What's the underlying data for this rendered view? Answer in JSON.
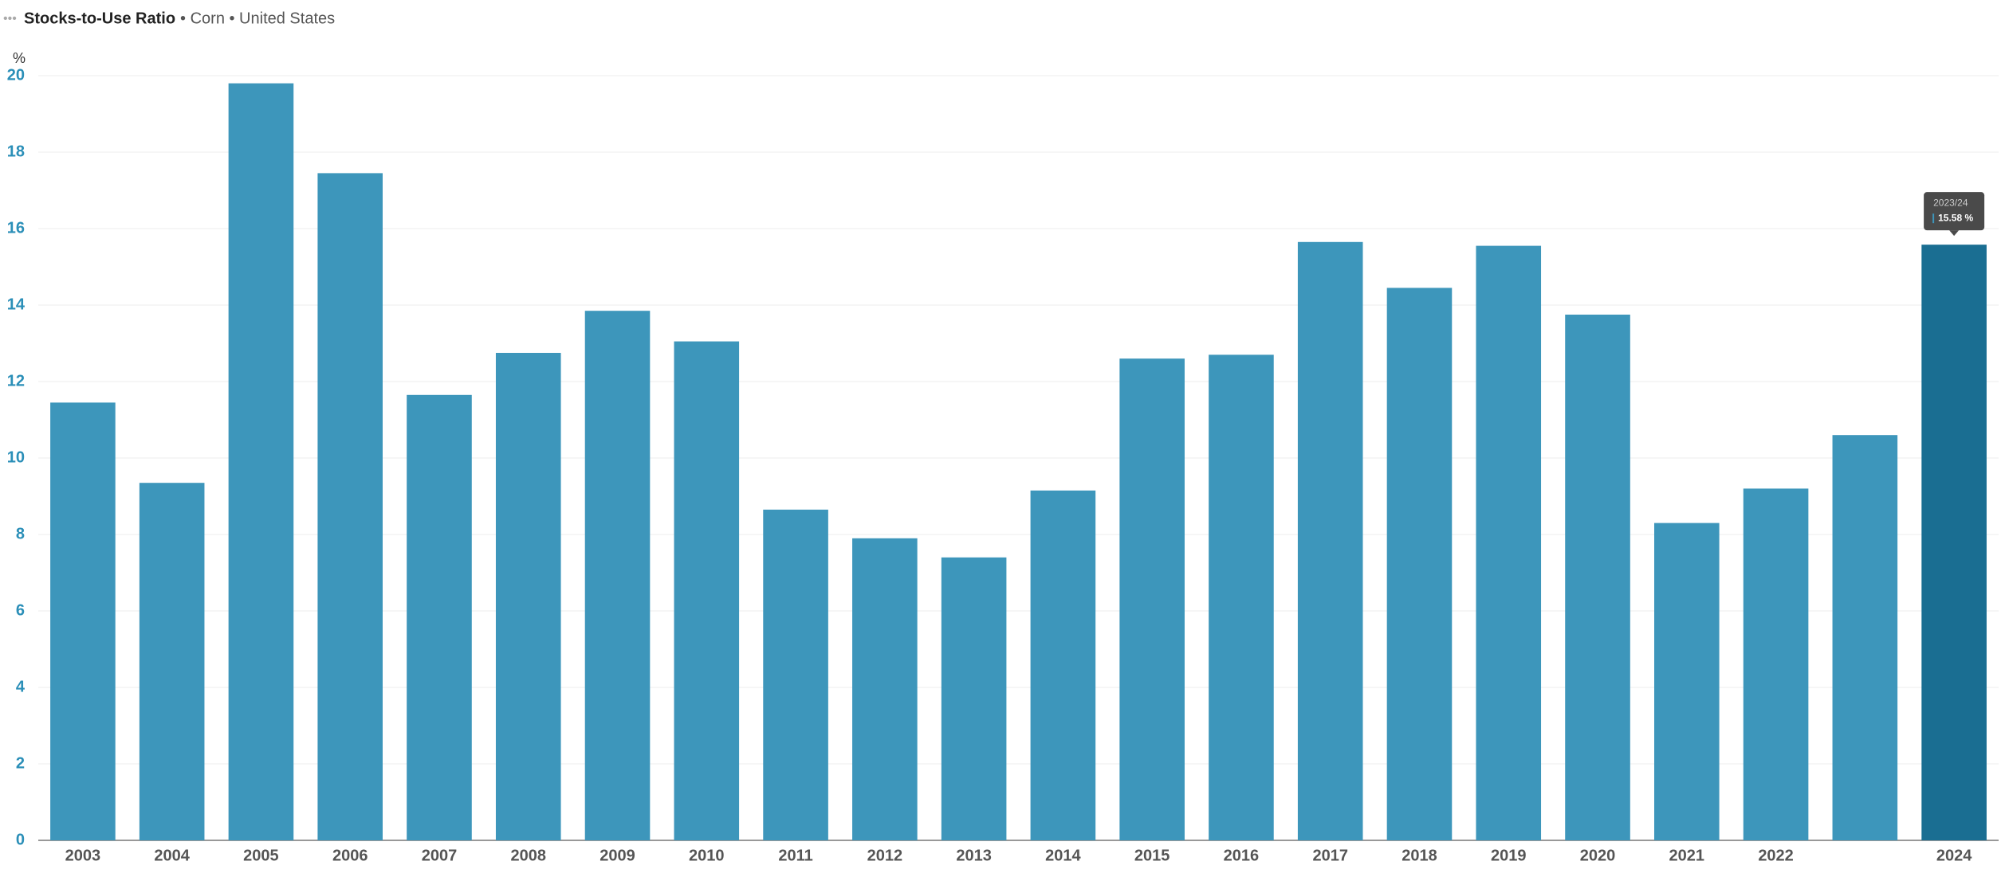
{
  "chart_data": {
    "type": "bar",
    "title": "Stocks-to-Use Ratio",
    "subtitle": "• Corn • United States",
    "y_unit": "%",
    "categories": [
      "2003",
      "2004",
      "2005",
      "2006",
      "2007",
      "2008",
      "2009",
      "2010",
      "2011",
      "2012",
      "2013",
      "2014",
      "2015",
      "2016",
      "2017",
      "2018",
      "2019",
      "2020",
      "2021",
      "2022",
      null,
      "2024"
    ],
    "values": [
      11.45,
      9.35,
      19.8,
      17.45,
      11.65,
      12.75,
      13.85,
      13.05,
      8.65,
      7.9,
      7.4,
      9.15,
      12.6,
      12.7,
      15.65,
      14.45,
      15.55,
      13.75,
      8.3,
      9.2,
      10.6,
      15.58
    ],
    "colors": [
      "#3d96bb",
      "#3d96bb",
      "#3d96bb",
      "#3d96bb",
      "#3d96bb",
      "#3d96bb",
      "#3d96bb",
      "#3d96bb",
      "#3d96bb",
      "#3d96bb",
      "#3d96bb",
      "#3d96bb",
      "#3d96bb",
      "#3d96bb",
      "#3d96bb",
      "#3d96bb",
      "#3d96bb",
      "#3d96bb",
      "#3d96bb",
      "#3d96bb",
      "#3d96bb",
      "#1a6e92"
    ],
    "ylim": [
      0,
      20
    ],
    "yticks": [
      0,
      2,
      4,
      6,
      8,
      10,
      12,
      14,
      16,
      18,
      20
    ],
    "grid": true,
    "tooltip": {
      "title": "2023/24",
      "text": "15.58 %"
    }
  }
}
